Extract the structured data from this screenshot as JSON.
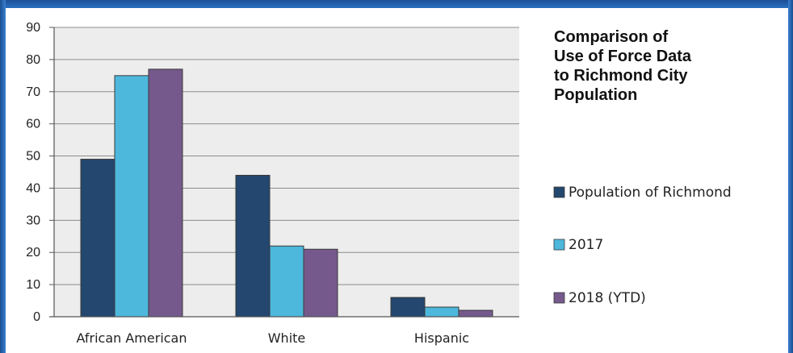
{
  "chart_data": {
    "type": "bar",
    "title_lines": [
      "Comparison of",
      "Use of Force Data",
      "to Richmond City",
      "Population"
    ],
    "categories": [
      "African American",
      "White",
      "Hispanic"
    ],
    "series": [
      {
        "name": "Population of Richmond",
        "values": [
          49,
          44,
          6
        ],
        "color": "#23476e"
      },
      {
        "name": "2017",
        "values": [
          75,
          22,
          3
        ],
        "color": "#4db7dc"
      },
      {
        "name": "2018 (YTD)",
        "values": [
          77,
          21,
          2
        ],
        "color": "#76598c"
      }
    ],
    "ylim": [
      0,
      90
    ],
    "yticks": [
      "0",
      "10",
      "20",
      "30",
      "40",
      "50",
      "60",
      "70",
      "80",
      "90"
    ],
    "grid": true,
    "legend_position": "right",
    "plot_background": "#ededed",
    "gridline_color": "#8c8c8c"
  }
}
